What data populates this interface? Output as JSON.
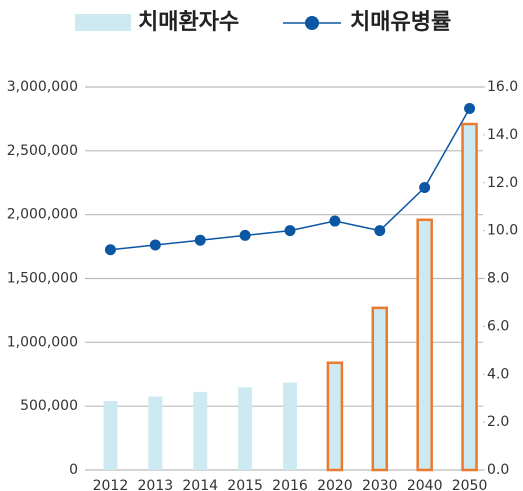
{
  "chart_data": {
    "type": "bar_line",
    "categories": [
      "2012",
      "2013",
      "2014",
      "2015",
      "2016",
      "2020",
      "2030",
      "2040",
      "2050"
    ],
    "series": [
      {
        "name": "치매환자수",
        "type": "bar",
        "color": "#cde9f1",
        "outline_color": "#ea7a2e",
        "outlined": [
          false,
          false,
          false,
          false,
          false,
          true,
          true,
          true,
          true
        ],
        "values": [
          540000,
          576000,
          612000,
          648000,
          685000,
          840000,
          1270000,
          1960000,
          2710000
        ]
      },
      {
        "name": "치매유병률",
        "type": "line",
        "axis": "y2",
        "color": "#0b57a4",
        "values": [
          9.2,
          9.4,
          9.6,
          9.8,
          10.0,
          10.4,
          10.0,
          11.8,
          15.1
        ]
      }
    ],
    "ylim": [
      0,
      3000000
    ],
    "yticks": [
      0,
      {
        "value": 500000,
        "label": "500,000"
      },
      {
        "value": 1000000,
        "label": "1,000,000"
      },
      {
        "value": 1500000,
        "label": "1,500,000"
      },
      {
        "value": 2000000,
        "label": "2,000,000"
      },
      {
        "value": 2500000,
        "label": "2,500,000"
      },
      {
        "value": 3000000,
        "label": "3,000,000"
      }
    ],
    "y2lim": [
      0,
      16
    ],
    "y2ticks": [
      {
        "value": 0,
        "label": "0.0"
      },
      {
        "value": 2,
        "label": "2.0"
      },
      {
        "value": 4,
        "label": "4.0"
      },
      {
        "value": 6,
        "label": "6.0"
      },
      {
        "value": 8,
        "label": "8.0"
      },
      {
        "value": 10,
        "label": "10.0"
      },
      {
        "value": 12,
        "label": "12.0"
      },
      {
        "value": 14,
        "label": "14.0"
      },
      {
        "value": 16,
        "label": "16.0"
      }
    ],
    "grid": true,
    "legend": "top"
  }
}
